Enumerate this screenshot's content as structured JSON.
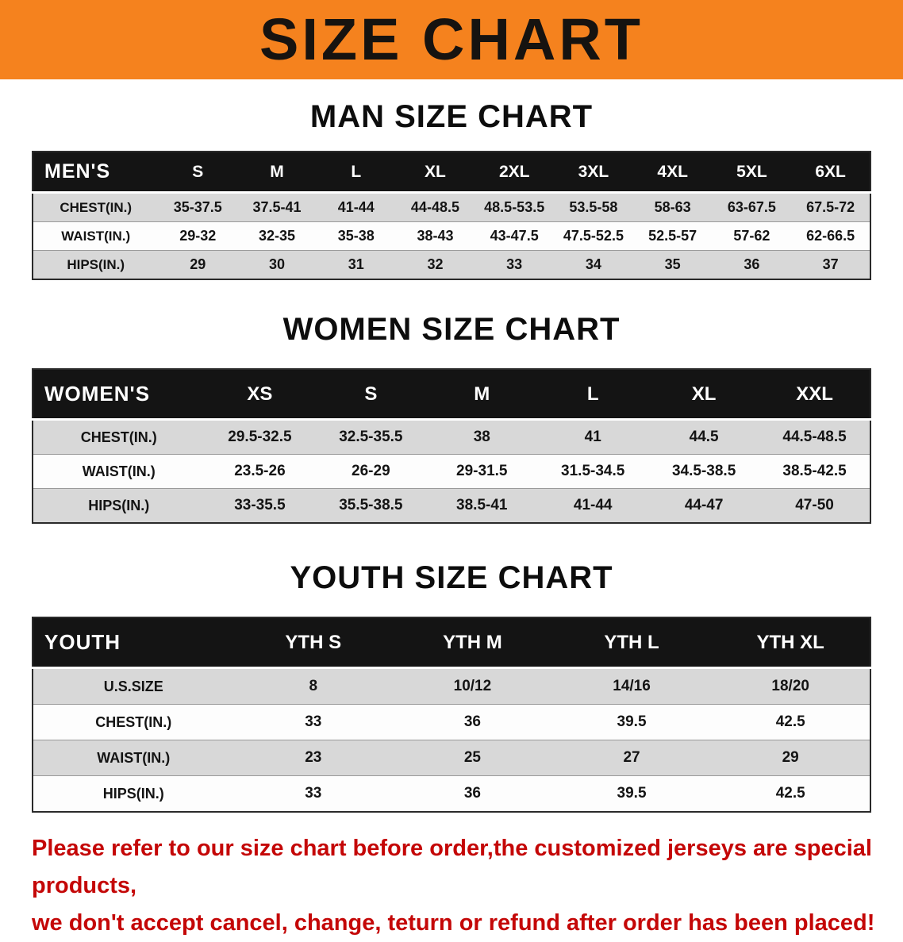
{
  "banner": {
    "title": "SIZE CHART"
  },
  "colors": {
    "accent_orange": "#f5821e",
    "header_black": "#141414",
    "row_shade": "#d8d8d8",
    "warning_red": "#c40707"
  },
  "man_section": {
    "heading": "MAN SIZE CHART",
    "table": {
      "header": [
        "MEN'S",
        "S",
        "M",
        "L",
        "XL",
        "2XL",
        "3XL",
        "4XL",
        "5XL",
        "6XL"
      ],
      "rows": [
        [
          "CHEST(IN.)",
          "35-37.5",
          "37.5-41",
          "41-44",
          "44-48.5",
          "48.5-53.5",
          "53.5-58",
          "58-63",
          "63-67.5",
          "67.5-72"
        ],
        [
          "WAIST(IN.)",
          "29-32",
          "32-35",
          "35-38",
          "38-43",
          "43-47.5",
          "47.5-52.5",
          "52.5-57",
          "57-62",
          "62-66.5"
        ],
        [
          "HIPS(IN.)",
          "29",
          "30",
          "31",
          "32",
          "33",
          "34",
          "35",
          "36",
          "37"
        ]
      ]
    }
  },
  "women_section": {
    "heading": "WOMEN SIZE CHART",
    "table": {
      "header": [
        "WOMEN'S",
        "XS",
        "S",
        "M",
        "L",
        "XL",
        "XXL"
      ],
      "rows": [
        [
          "CHEST(IN.)",
          "29.5-32.5",
          "32.5-35.5",
          "38",
          "41",
          "44.5",
          "44.5-48.5"
        ],
        [
          "WAIST(IN.)",
          "23.5-26",
          "26-29",
          "29-31.5",
          "31.5-34.5",
          "34.5-38.5",
          "38.5-42.5"
        ],
        [
          "HIPS(IN.)",
          "33-35.5",
          "35.5-38.5",
          "38.5-41",
          "41-44",
          "44-47",
          "47-50"
        ]
      ]
    }
  },
  "youth_section": {
    "heading": "YOUTH SIZE CHART",
    "table": {
      "header": [
        "YOUTH",
        "YTH S",
        "YTH M",
        "YTH L",
        "YTH XL"
      ],
      "rows": [
        [
          "U.S.SIZE",
          "8",
          "10/12",
          "14/16",
          "18/20"
        ],
        [
          "CHEST(IN.)",
          "33",
          "36",
          "39.5",
          "42.5"
        ],
        [
          "WAIST(IN.)",
          "23",
          "25",
          "27",
          "29"
        ],
        [
          "HIPS(IN.)",
          "33",
          "36",
          "39.5",
          "42.5"
        ]
      ]
    }
  },
  "footer": {
    "lines": [
      "Please refer to our size chart before order,the customized jerseys are special products,",
      "we don't accept cancel, change, teturn or refund after order has been placed!"
    ]
  }
}
